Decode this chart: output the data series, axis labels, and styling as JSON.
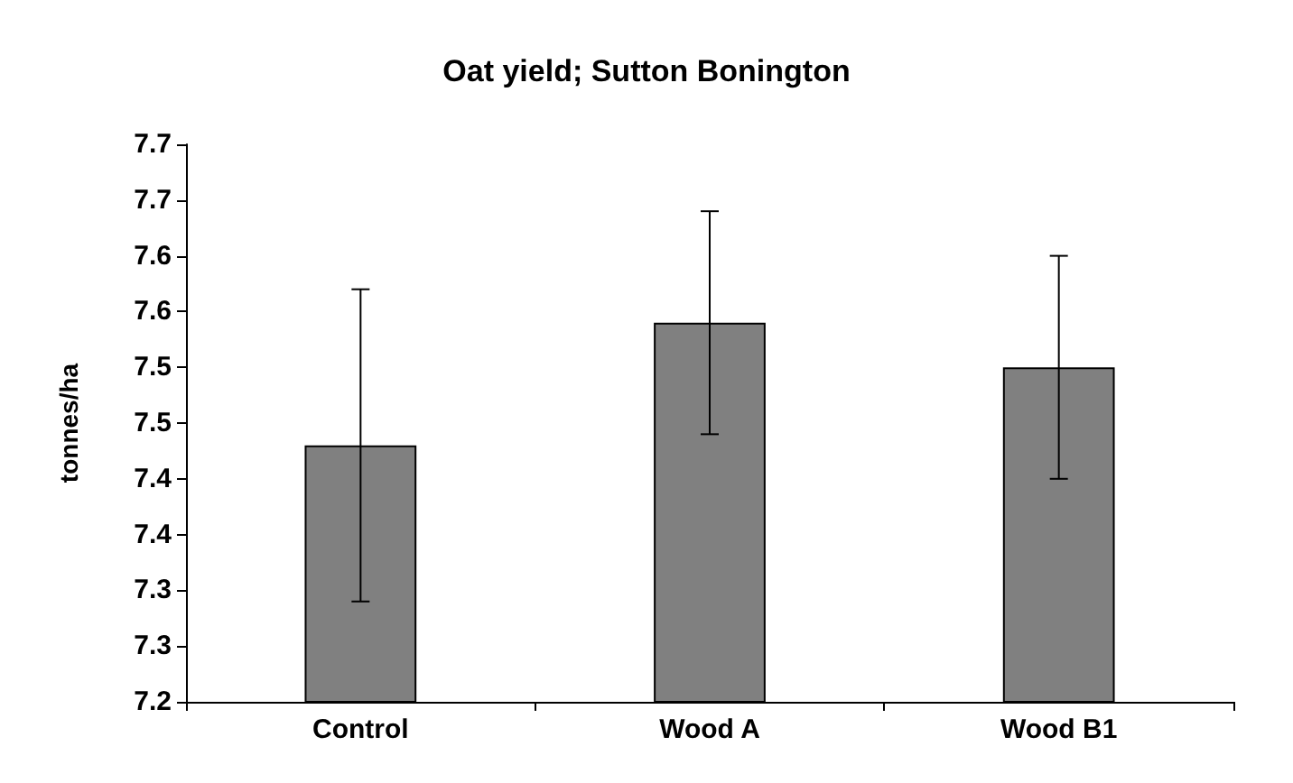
{
  "chart_data": {
    "type": "bar",
    "title": "Oat yield; Sutton Bonington",
    "ylabel": "tonnes/ha",
    "categories": [
      "Control",
      "Wood A",
      "Wood B1"
    ],
    "values": [
      7.43,
      7.54,
      7.5
    ],
    "errors": [
      0.14,
      0.1,
      0.1
    ],
    "color": "#808080",
    "ylim": [
      7.2,
      7.7
    ],
    "yticks": [
      {
        "value": 7.2,
        "label": "7.2"
      },
      {
        "value": 7.25,
        "label": "7.3"
      },
      {
        "value": 7.3,
        "label": "7.3"
      },
      {
        "value": 7.35,
        "label": "7.4"
      },
      {
        "value": 7.4,
        "label": "7.4"
      },
      {
        "value": 7.45,
        "label": "7.5"
      },
      {
        "value": 7.5,
        "label": "7.5"
      },
      {
        "value": 7.55,
        "label": "7.6"
      },
      {
        "value": 7.6,
        "label": "7.6"
      },
      {
        "value": 7.65,
        "label": "7.7"
      },
      {
        "value": 7.7,
        "label": "7.7"
      }
    ],
    "grid": false
  }
}
